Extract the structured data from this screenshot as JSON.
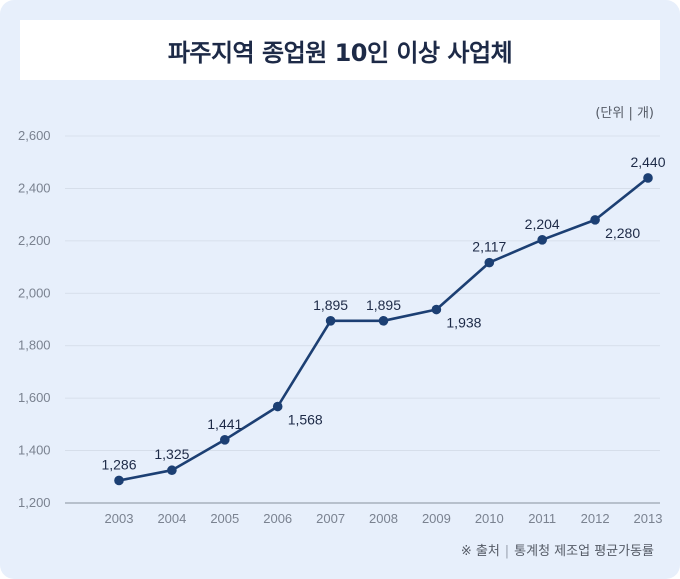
{
  "title": "파주지역 종업원 10인 이상 사업체",
  "unit_label": "(단위 | 개)",
  "source": {
    "prefix": "※ 출처",
    "text": "통계청 제조업 평균가동률"
  },
  "colors": {
    "line": "#1c3f73",
    "grid": "#d3dbe7",
    "background": "#e7effb"
  },
  "chart_data": {
    "type": "line",
    "title": "파주지역 종업원 10인 이상 사업체",
    "xlabel": "",
    "ylabel": "",
    "categories": [
      "2003",
      "2004",
      "2005",
      "2006",
      "2007",
      "2008",
      "2009",
      "2010",
      "2011",
      "2012",
      "2013"
    ],
    "values": [
      1286,
      1325,
      1441,
      1568,
      1895,
      1895,
      1938,
      2117,
      2204,
      2280,
      2440
    ],
    "value_labels": [
      "1,286",
      "1,325",
      "1,441",
      "1,568",
      "1,895",
      "1,895",
      "1,938",
      "2,117",
      "2,204",
      "2,280",
      "2,440"
    ],
    "label_position": [
      "above",
      "above",
      "above",
      "right",
      "above",
      "above",
      "right",
      "above",
      "above",
      "right",
      "above"
    ],
    "ylim": [
      1200,
      2600
    ],
    "y_ticks": [
      1200,
      1400,
      1600,
      1800,
      2000,
      2200,
      2400,
      2600
    ],
    "y_tick_labels": [
      "1,200",
      "1,400",
      "1,600",
      "1,800",
      "2,000",
      "2,200",
      "2,400",
      "2,600"
    ],
    "grid": true,
    "legend": "none"
  }
}
